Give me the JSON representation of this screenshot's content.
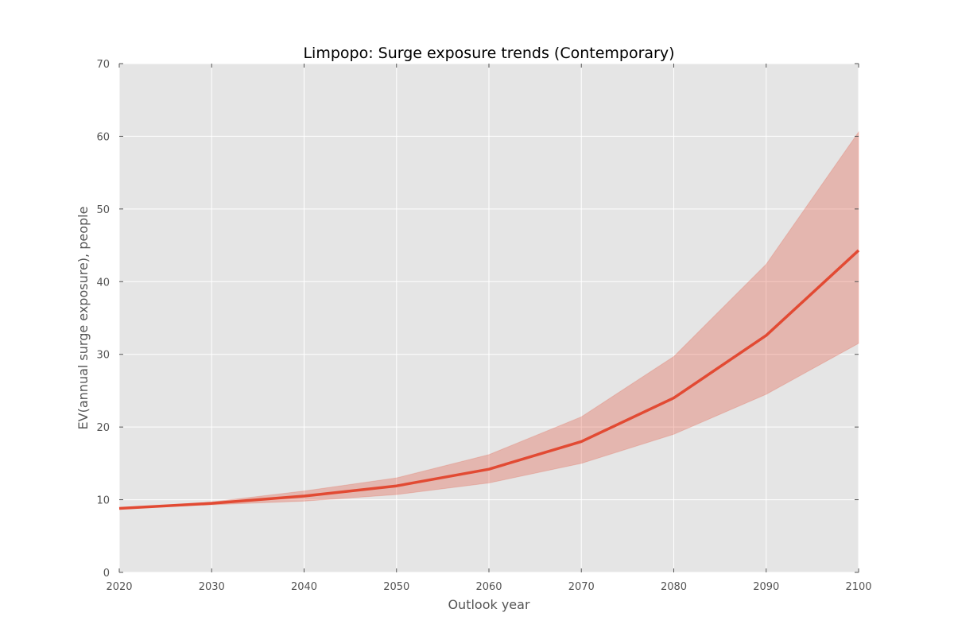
{
  "chart_data": {
    "type": "line",
    "title": "Limpopo: Surge exposure trends (Contemporary)",
    "xlabel": "Outlook year",
    "ylabel": "EV(annual surge exposure), people",
    "xlim": [
      2020,
      2100
    ],
    "ylim": [
      0,
      70
    ],
    "x_ticks": [
      "2020",
      "2030",
      "2040",
      "2050",
      "2060",
      "2070",
      "2080",
      "2090",
      "2100"
    ],
    "y_ticks": [
      "0",
      "10",
      "20",
      "30",
      "40",
      "50",
      "60",
      "70"
    ],
    "grid": true,
    "legend": "none",
    "colors": {
      "plot_background": "#e5e5e5",
      "line": "#e24a33",
      "band": "#e24a33"
    },
    "series": [
      {
        "x": [
          2020,
          2030,
          2040,
          2050,
          2060,
          2070,
          2080,
          2090,
          2100
        ],
        "values": [
          8.8,
          9.5,
          10.5,
          11.9,
          14.2,
          18.0,
          24.0,
          32.6,
          44.3
        ],
        "lower": [
          8.8,
          9.3,
          9.8,
          10.7,
          12.3,
          15.0,
          19.0,
          24.5,
          31.5
        ],
        "upper": [
          8.8,
          9.7,
          11.2,
          13.0,
          16.2,
          21.4,
          29.7,
          42.4,
          60.6
        ]
      }
    ]
  }
}
